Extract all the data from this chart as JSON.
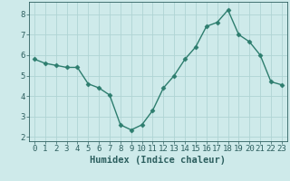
{
  "x": [
    0,
    1,
    2,
    3,
    4,
    5,
    6,
    7,
    8,
    9,
    10,
    11,
    12,
    13,
    14,
    15,
    16,
    17,
    18,
    19,
    20,
    21,
    22,
    23
  ],
  "y": [
    5.8,
    5.6,
    5.5,
    5.4,
    5.4,
    4.6,
    4.4,
    4.05,
    2.6,
    2.35,
    2.6,
    3.3,
    4.4,
    5.0,
    5.8,
    6.4,
    7.4,
    7.6,
    8.2,
    7.0,
    6.65,
    6.0,
    4.7,
    4.55
  ],
  "line_color": "#2d7d6e",
  "marker": "D",
  "marker_size": 2.5,
  "bg_color": "#ceeaea",
  "grid_color": "#afd4d4",
  "axis_color": "#2d7d6e",
  "tick_color": "#2d5f5f",
  "xlabel": "Humidex (Indice chaleur)",
  "xlabel_fontsize": 7.5,
  "tick_fontsize": 6.5,
  "ylim": [
    1.8,
    8.6
  ],
  "xlim": [
    -0.5,
    23.5
  ],
  "yticks": [
    2,
    3,
    4,
    5,
    6,
    7,
    8
  ],
  "xticks": [
    0,
    1,
    2,
    3,
    4,
    5,
    6,
    7,
    8,
    9,
    10,
    11,
    12,
    13,
    14,
    15,
    16,
    17,
    18,
    19,
    20,
    21,
    22,
    23
  ],
  "figsize": [
    3.2,
    2.0
  ],
  "dpi": 100
}
